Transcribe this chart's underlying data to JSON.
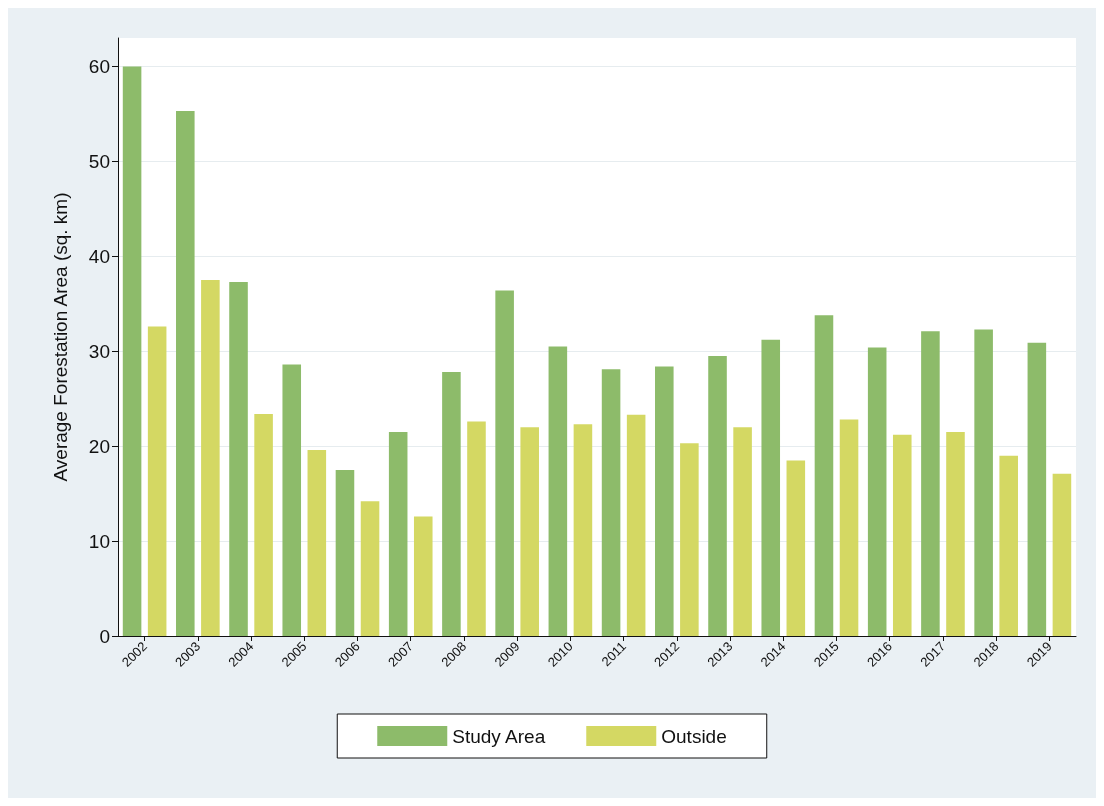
{
  "chart_data": {
    "type": "bar",
    "ylabel": "Average Forestation Area (sq. km)",
    "categories": [
      "2002",
      "2003",
      "2004",
      "2005",
      "2006",
      "2007",
      "2008",
      "2009",
      "2010",
      "2011",
      "2012",
      "2013",
      "2014",
      "2015",
      "2016",
      "2017",
      "2018",
      "2019"
    ],
    "series": [
      {
        "name": "Study Area",
        "color": "#8dbb6a",
        "values": [
          60.0,
          55.3,
          37.3,
          28.6,
          17.5,
          21.5,
          27.8,
          36.4,
          30.5,
          28.1,
          28.4,
          29.5,
          31.2,
          33.8,
          30.4,
          32.1,
          32.3,
          30.9
        ]
      },
      {
        "name": "Outside",
        "color": "#d4d863",
        "values": [
          32.6,
          37.5,
          23.4,
          19.6,
          14.2,
          12.6,
          22.6,
          22.0,
          22.3,
          23.3,
          20.3,
          22.0,
          18.5,
          22.8,
          21.2,
          21.5,
          19.0,
          17.1
        ]
      }
    ],
    "ylim": [
      0,
      63
    ],
    "yticks": [
      0,
      10,
      20,
      30,
      40,
      50,
      60
    ],
    "grid": "y",
    "legend": "bottom"
  }
}
